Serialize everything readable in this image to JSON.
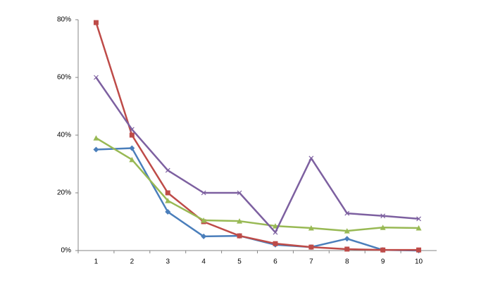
{
  "chart_data": {
    "type": "line",
    "categories": [
      "1",
      "2",
      "3",
      "4",
      "5",
      "6",
      "7",
      "8",
      "9",
      "10"
    ],
    "series": [
      {
        "color": "#4a7ebb",
        "marker": "diamond",
        "values": [
          35,
          35.5,
          13.4,
          4.9,
          5.1,
          2,
          1.2,
          4.1,
          0.2,
          0
        ]
      },
      {
        "color": "#be4b48",
        "marker": "square",
        "values": [
          79,
          40,
          20,
          10,
          5.1,
          2.4,
          1.2,
          0.5,
          0.2,
          0.2
        ]
      },
      {
        "color": "#98b954",
        "marker": "triangle",
        "values": [
          39,
          31.5,
          17.3,
          10.5,
          10.2,
          8.5,
          7.8,
          6.8,
          8,
          7.8
        ]
      },
      {
        "color": "#7d60a0",
        "marker": "x",
        "values": [
          60,
          42,
          27.8,
          20,
          20,
          6.3,
          32,
          12.9,
          12,
          11
        ]
      }
    ],
    "ylim": [
      0,
      80
    ],
    "yticks": [
      {
        "value": 0,
        "label": "0%"
      },
      {
        "value": 20,
        "label": "20%"
      },
      {
        "value": 40,
        "label": "40%"
      },
      {
        "value": 60,
        "label": "60%"
      },
      {
        "value": 80,
        "label": "80%"
      }
    ],
    "grid": false
  }
}
